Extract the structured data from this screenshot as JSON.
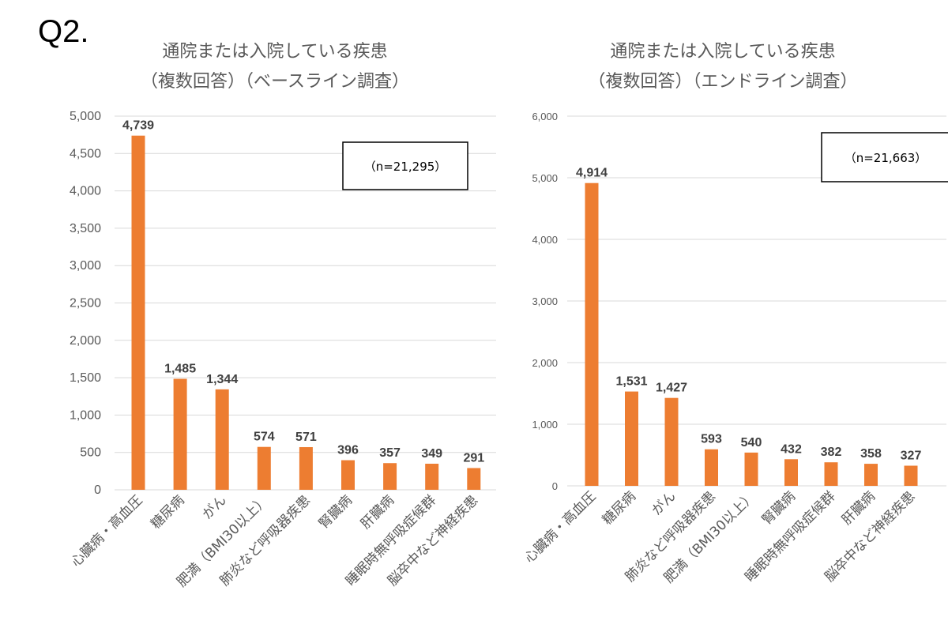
{
  "heading": "Q2.",
  "chart_data": [
    {
      "type": "bar",
      "title": [
        "通院または入院している疾患",
        "（複数回答）（ベースライン調査）"
      ],
      "annotation": "（n=21,295）",
      "categories": [
        "心臓病・高血圧",
        "糖尿病",
        "がん",
        "肥満（BMI30以上）",
        "肺炎など呼吸器疾患",
        "腎臓病",
        "肝臓病",
        "睡眠時無呼吸症候群",
        "脳卒中など神経疾患"
      ],
      "values": [
        4739,
        1485,
        1344,
        574,
        571,
        396,
        357,
        349,
        291
      ],
      "data_labels": [
        "4,739",
        "1,485",
        "1,344",
        "574",
        "571",
        "396",
        "357",
        "349",
        "291"
      ],
      "ylim": [
        0,
        5000
      ],
      "yticks": [
        "0",
        "500",
        "1,000",
        "1,500",
        "2,000",
        "2,500",
        "3,000",
        "3,500",
        "4,000",
        "4,500",
        "5,000"
      ],
      "ytick_values": [
        0,
        500,
        1000,
        1500,
        2000,
        2500,
        3000,
        3500,
        4000,
        4500,
        5000
      ],
      "grid": true,
      "bar_color": "#ED7D31"
    },
    {
      "type": "bar",
      "title": [
        "通院または入院している疾患",
        "（複数回答）（エンドライン調査）"
      ],
      "annotation": "（n=21,663）",
      "categories": [
        "心臓病・高血圧",
        "糖尿病",
        "がん",
        "肺炎など呼吸器疾患",
        "肥満（BMI30以上）",
        "腎臓病",
        "睡眠時無呼吸症候群",
        "肝臓病",
        "脳卒中など神経疾患"
      ],
      "values": [
        4914,
        1531,
        1427,
        593,
        540,
        432,
        382,
        358,
        327
      ],
      "data_labels": [
        "4,914",
        "1,531",
        "1,427",
        "593",
        "540",
        "432",
        "382",
        "358",
        "327"
      ],
      "ylim": [
        0,
        6000
      ],
      "yticks": [
        "0",
        "1,000",
        "2,000",
        "3,000",
        "4,000",
        "5,000",
        "6,000"
      ],
      "ytick_values": [
        0,
        1000,
        2000,
        3000,
        4000,
        5000,
        6000
      ],
      "grid": true,
      "bar_color": "#ED7D31"
    }
  ]
}
